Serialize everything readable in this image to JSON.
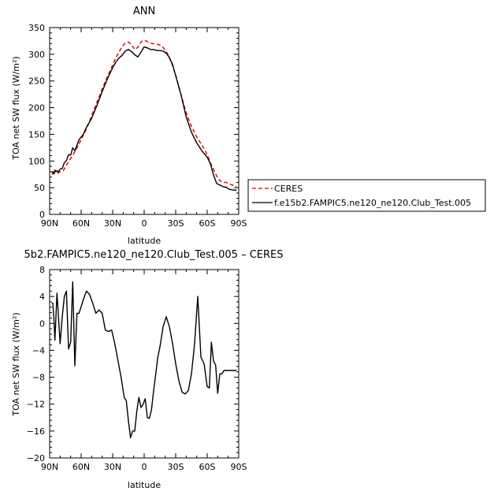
{
  "chart_data": [
    {
      "type": "line",
      "title": "ANN",
      "xlabel": "latitude",
      "ylabel": "TOA net SW flux (W/m²)",
      "xlim": [
        90,
        -90
      ],
      "ylim": [
        0,
        350
      ],
      "x_ticks": [
        {
          "value": 90,
          "label": "90N"
        },
        {
          "value": 60,
          "label": "60N"
        },
        {
          "value": 30,
          "label": "30N"
        },
        {
          "value": 0,
          "label": "0"
        },
        {
          "value": -30,
          "label": "30S"
        },
        {
          "value": -60,
          "label": "60S"
        },
        {
          "value": -90,
          "label": "90S"
        }
      ],
      "y_ticks": [
        0,
        50,
        100,
        150,
        200,
        250,
        300,
        350
      ],
      "y_tick_labels": [
        "0",
        "50",
        "100",
        "150",
        "200",
        "250",
        "300",
        "350"
      ],
      "legend_position": "right",
      "series": [
        {
          "name": "CERES",
          "color": "#dd0000",
          "dash": "dashed",
          "x": [
            88,
            85,
            83,
            80,
            77,
            74,
            70,
            65,
            60,
            55,
            50,
            45,
            40,
            35,
            30,
            27,
            24,
            21,
            18,
            15,
            12,
            9,
            6,
            3,
            1,
            -2,
            -5,
            -8,
            -11,
            -14,
            -17,
            -20,
            -23,
            -26,
            -30,
            -35,
            -40,
            -45,
            -50,
            -55,
            -60,
            -63,
            -66,
            -69,
            -72,
            -75,
            -78,
            -81,
            -84,
            -88
          ],
          "y": [
            75,
            78,
            76,
            80,
            82,
            92,
            105,
            120,
            140,
            160,
            185,
            210,
            235,
            258,
            280,
            293,
            304,
            314,
            321,
            323,
            318,
            309,
            313,
            323,
            326,
            325,
            321,
            320,
            319,
            318,
            315,
            308,
            298,
            284,
            261,
            225,
            190,
            165,
            145,
            130,
            112,
            97,
            84,
            72,
            63,
            60,
            60,
            57,
            55,
            52
          ]
        },
        {
          "name": "f.e15b2.FAMPIC5.ne120_ne120.Club_Test.005",
          "color": "#000000",
          "dash": "solid",
          "x": [
            88,
            87,
            86,
            85,
            84,
            83,
            82,
            80,
            78,
            76,
            74,
            72,
            70,
            68,
            66,
            64,
            62,
            58,
            55,
            50,
            45,
            40,
            35,
            30,
            27,
            24,
            21,
            18,
            15,
            12,
            9,
            6,
            3,
            0,
            -3,
            -6,
            -9,
            -12,
            -15,
            -18,
            -21,
            -24,
            -27,
            -30,
            -35,
            -40,
            -45,
            -50,
            -55,
            -60,
            -63,
            -66,
            -69,
            -72,
            -75,
            -78,
            -81,
            -84,
            -88
          ],
          "y": [
            78,
            80,
            76,
            83,
            80,
            82,
            79,
            85,
            86,
            97,
            101,
            112,
            111,
            125,
            119,
            130,
            140,
            150,
            163,
            180,
            204,
            230,
            254,
            275,
            285,
            293,
            298,
            306,
            309,
            305,
            299,
            295,
            304,
            314,
            312,
            309,
            309,
            307,
            307,
            306,
            302,
            294,
            281,
            260,
            224,
            183,
            154,
            134,
            119,
            107,
            95,
            74,
            58,
            55,
            52,
            51,
            47,
            46,
            45
          ]
        }
      ]
    },
    {
      "type": "line",
      "title": "5b2.FAMPIC5.ne120_ne120.Club_Test.005 – CERES",
      "xlabel": "latitude",
      "ylabel": "TOA net SW flux (W/m²)",
      "xlim": [
        90,
        -90
      ],
      "ylim": [
        -20,
        8
      ],
      "x_ticks": [
        {
          "value": 90,
          "label": "90N"
        },
        {
          "value": 60,
          "label": "60N"
        },
        {
          "value": 30,
          "label": "30N"
        },
        {
          "value": 0,
          "label": "0"
        },
        {
          "value": -30,
          "label": "30S"
        },
        {
          "value": -60,
          "label": "60S"
        },
        {
          "value": -90,
          "label": "90S"
        }
      ],
      "y_ticks": [
        -20,
        -16,
        -12,
        -8,
        -4,
        0,
        4,
        8
      ],
      "y_tick_labels": [
        "−20",
        "−16",
        "−12",
        "−8",
        "−4",
        "0",
        "4",
        "8"
      ],
      "series": [
        {
          "name": "",
          "color": "#000000",
          "dash": "solid",
          "x": [
            88,
            87,
            86,
            85,
            84,
            83,
            82,
            80,
            78,
            76,
            74,
            72,
            70,
            68,
            66,
            64,
            62,
            58,
            55,
            52,
            49,
            46,
            43,
            40,
            37,
            34,
            31,
            28,
            25,
            22,
            19,
            17,
            15,
            13,
            11,
            9,
            7,
            5,
            3,
            1,
            -1,
            -3,
            -5,
            -7,
            -9,
            -11,
            -13,
            -15,
            -18,
            -21,
            -24,
            -27,
            -30,
            -33,
            -36,
            -39,
            -42,
            -45,
            -48,
            -51,
            -54,
            -57,
            -60,
            -62,
            -64,
            -66,
            -68,
            -70,
            -72,
            -74,
            -76,
            -78,
            -80,
            -82,
            -84,
            -86,
            -88
          ],
          "y": [
            3.0,
            3.0,
            1.0,
            -2.5,
            1.0,
            4.5,
            2.0,
            -3.0,
            1.0,
            4.0,
            4.8,
            -3.8,
            -2.8,
            6.2,
            -6.3,
            1.5,
            1.5,
            3.5,
            4.8,
            4.3,
            3.0,
            1.5,
            2.0,
            1.5,
            -1.0,
            -1.2,
            -1.0,
            -3.0,
            -5.5,
            -8.0,
            -11.0,
            -11.5,
            -14.5,
            -17.0,
            -16.0,
            -16.0,
            -13.0,
            -11.0,
            -12.5,
            -12.0,
            -11.2,
            -14.0,
            -14.1,
            -12.8,
            -10.0,
            -7.5,
            -5.0,
            -3.5,
            -0.5,
            1.0,
            -0.5,
            -3.0,
            -6.0,
            -8.5,
            -10.2,
            -10.5,
            -10.0,
            -7.5,
            -3.0,
            4.0,
            -5.0,
            -6.0,
            -9.4,
            -9.6,
            -2.8,
            -5.6,
            -6.2,
            -10.4,
            -7.5,
            -7.5,
            -7.0,
            -7.0,
            -7.0,
            -7.0,
            -7.0,
            -7.0,
            -7.0
          ]
        }
      ]
    }
  ]
}
